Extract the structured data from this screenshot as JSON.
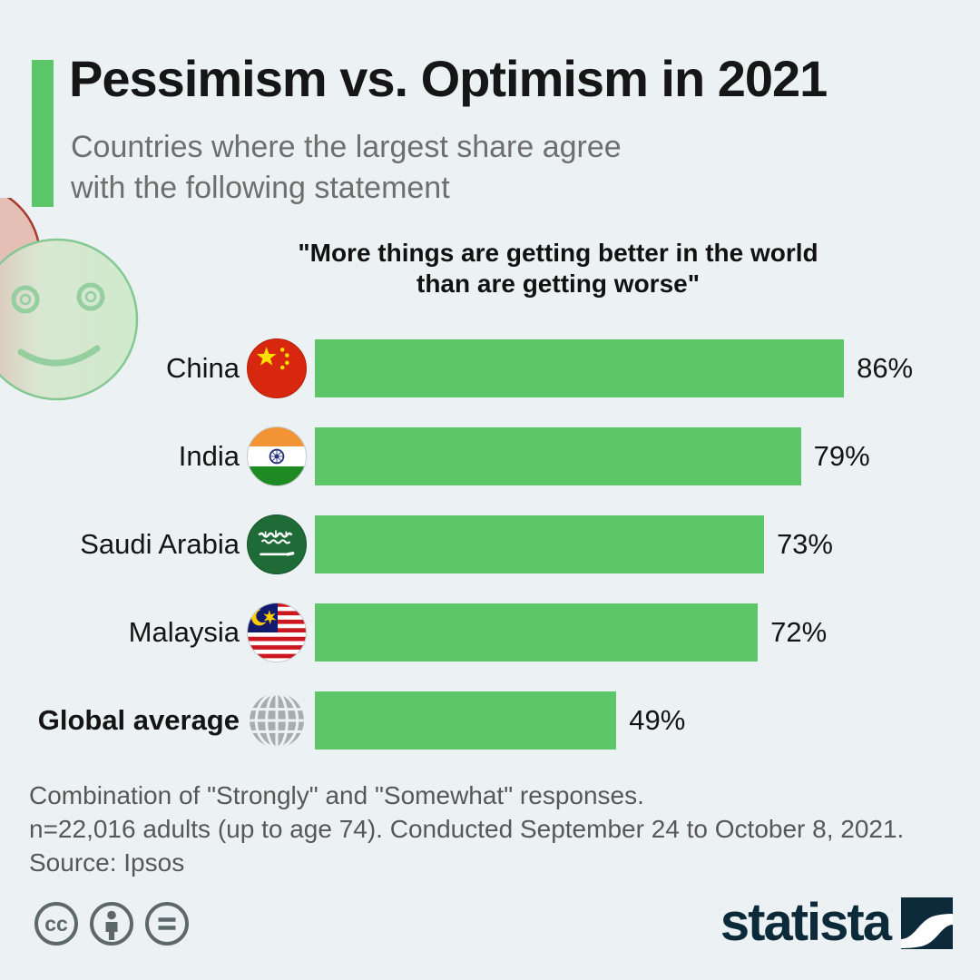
{
  "header": {
    "title": "Pessimism vs. Optimism in 2021",
    "subtitle_line1": "Countries where the largest share agree",
    "subtitle_line2": "with the following statement"
  },
  "quote": {
    "line1": "\"More things are getting better in the world",
    "line2": "than are getting worse\""
  },
  "chart_data": {
    "type": "bar",
    "orientation": "horizontal",
    "title": "\"More things are getting better in the world than are getting worse\"",
    "categories": [
      "China",
      "India",
      "Saudi Arabia",
      "Malaysia",
      "Global average"
    ],
    "values": [
      86,
      79,
      73,
      72,
      49
    ],
    "unit": "%",
    "xlim": [
      0,
      100
    ],
    "grid": false,
    "legend": false,
    "bar_color": "#5cc769",
    "rows": [
      {
        "label": "China",
        "value": 86,
        "value_label": "86%",
        "icon": "china-flag"
      },
      {
        "label": "India",
        "value": 79,
        "value_label": "79%",
        "icon": "india-flag"
      },
      {
        "label": "Saudi Arabia",
        "value": 73,
        "value_label": "73%",
        "icon": "saudi-arabia-flag"
      },
      {
        "label": "Malaysia",
        "value": 72,
        "value_label": "72%",
        "icon": "malaysia-flag"
      },
      {
        "label": "Global average",
        "value": 49,
        "value_label": "49%",
        "icon": "globe"
      }
    ]
  },
  "footer": {
    "note_line1": "Combination of \"Strongly\" and \"Somewhat\" responses.",
    "note_line2": "n=22,016 adults (up to age 74). Conducted September 24 to October 8, 2021.",
    "source": "Source: Ipsos"
  },
  "branding": {
    "logo_text": "statista",
    "license_icons": [
      "creative-commons",
      "attribution",
      "no-derivatives"
    ]
  },
  "colors": {
    "background": "#ecf2f3",
    "accent_green": "#5cc769",
    "title_text": "#161616",
    "subtitle_text": "#6e6e6e",
    "footer_text": "#575757",
    "logo_navy": "#0d2a3b",
    "license_icon_gray": "#5d686b"
  }
}
